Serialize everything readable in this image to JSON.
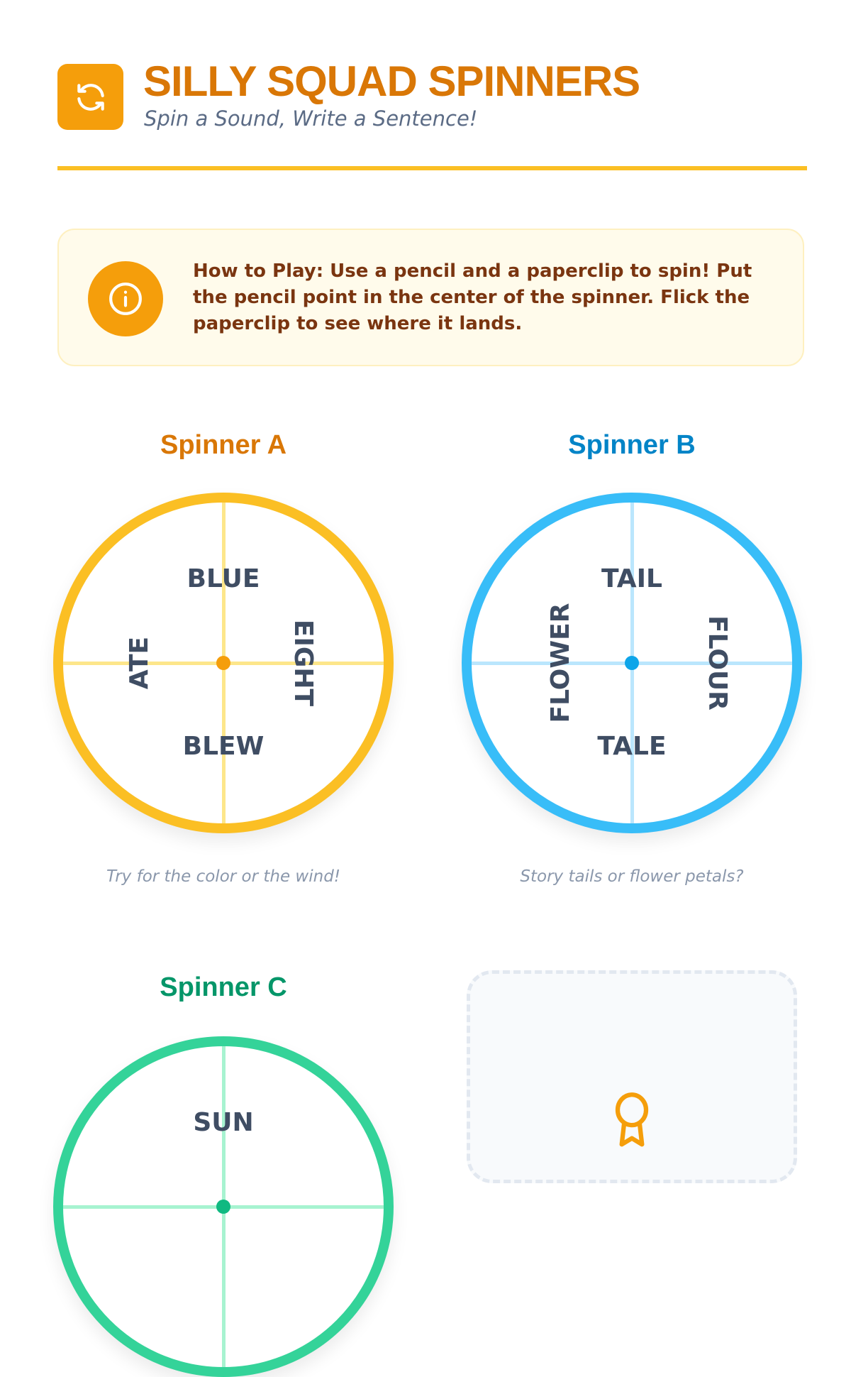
{
  "header": {
    "logo_icon": "refresh-icon",
    "title": "SILLY SQUAD SPINNERS",
    "subtitle": "Spin a Sound, Write a Sentence!"
  },
  "info": {
    "icon": "info-icon",
    "text": "How to Play: Use a pencil and a paperclip to spin! Put the pencil point in the center of the spinner. Flick the paperclip to see where it lands."
  },
  "spinners": [
    {
      "title": "Spinner A",
      "title_color": "#d97706",
      "ring_color": "#fbbf24",
      "line_color": "#fde68a",
      "dot_color": "#f59e0b",
      "words": {
        "top": "BLUE",
        "bottom": "BLEW",
        "left": "ATE",
        "right": "EIGHT"
      },
      "caption": "Try for the color or the wind!"
    },
    {
      "title": "Spinner B",
      "title_color": "#0284c7",
      "ring_color": "#38bdf8",
      "line_color": "#bae6fd",
      "dot_color": "#0ea5e9",
      "words": {
        "top": "TAIL",
        "bottom": "TALE",
        "left": "FLOWER",
        "right": "FLOUR"
      },
      "caption": "Story tails or flower petals?"
    },
    {
      "title": "Spinner C",
      "title_color": "#059669",
      "ring_color": "#34d399",
      "line_color": "#a7f3d0",
      "dot_color": "#10b981",
      "words": {
        "top": "SUN"
      }
    }
  ],
  "placeholder": {
    "icon": "award-icon",
    "icon_color": "#f59e0b"
  }
}
